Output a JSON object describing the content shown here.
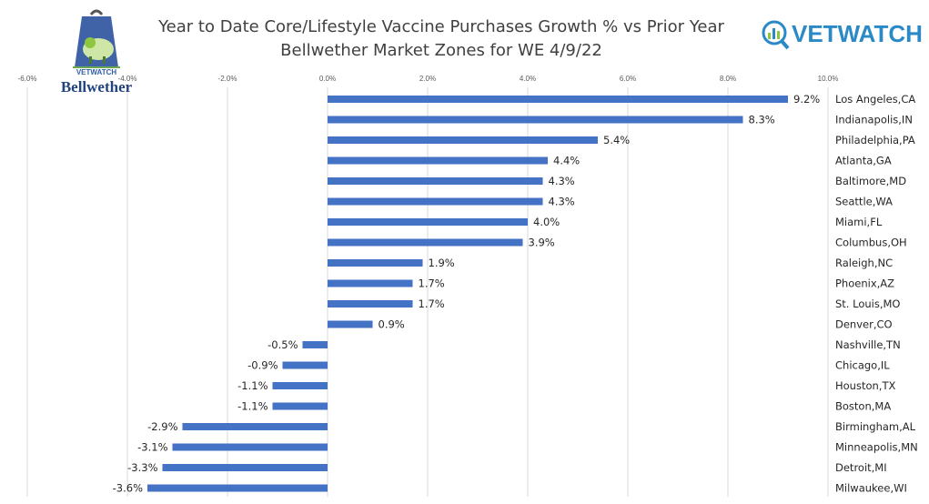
{
  "title_line1": "Year to Date Core/Lifestyle Vaccine Purchases Growth % vs Prior Year",
  "title_line2": "Bellwether Market Zones for WE 4/9/22",
  "logo_left": {
    "brand": "VETWATCH",
    "product": "Bellwether"
  },
  "logo_right": {
    "brand": "VETWATCH"
  },
  "colors": {
    "bar": "#4472c4",
    "grid": "#d9d9d9",
    "title": "#404040",
    "logo_blue": "#2a8ac7",
    "logo_green": "#8dc63f"
  },
  "chart_data": {
    "type": "bar",
    "orientation": "horizontal",
    "xlim": [
      -6,
      10
    ],
    "xticks": [
      -6,
      -4,
      -2,
      0,
      2,
      4,
      6,
      8,
      10
    ],
    "xtick_labels": [
      "-6.0%",
      "-4.0%",
      "-2.0%",
      "0.0%",
      "2.0%",
      "4.0%",
      "6.0%",
      "8.0%",
      "10.0%"
    ],
    "xaxis_position": "top",
    "grid": true,
    "categories": [
      "Los Angeles,CA",
      "Indianapolis,IN",
      "Philadelphia,PA",
      "Atlanta,GA",
      "Baltimore,MD",
      "Seattle,WA",
      "Miami,FL",
      "Columbus,OH",
      "Raleigh,NC",
      "Phoenix,AZ",
      "St. Louis,MO",
      "Denver,CO",
      "Nashville,TN",
      "Chicago,IL",
      "Houston,TX",
      "Boston,MA",
      "Birmingham,AL",
      "Minneapolis,MN",
      "Detroit,MI",
      "Milwaukee,WI"
    ],
    "values": [
      9.2,
      8.3,
      5.4,
      4.4,
      4.3,
      4.3,
      4.0,
      3.9,
      1.9,
      1.7,
      1.7,
      0.9,
      -0.5,
      -0.9,
      -1.1,
      -1.1,
      -2.9,
      -3.1,
      -3.3,
      -3.6
    ],
    "value_labels": [
      "9.2%",
      "8.3%",
      "5.4%",
      "4.4%",
      "4.3%",
      "4.3%",
      "4.0%",
      "3.9%",
      "1.9%",
      "1.7%",
      "1.7%",
      "0.9%",
      "-0.5%",
      "-0.9%",
      "-1.1%",
      "-1.1%",
      "-2.9%",
      "-3.1%",
      "-3.3%",
      "-3.6%"
    ]
  }
}
